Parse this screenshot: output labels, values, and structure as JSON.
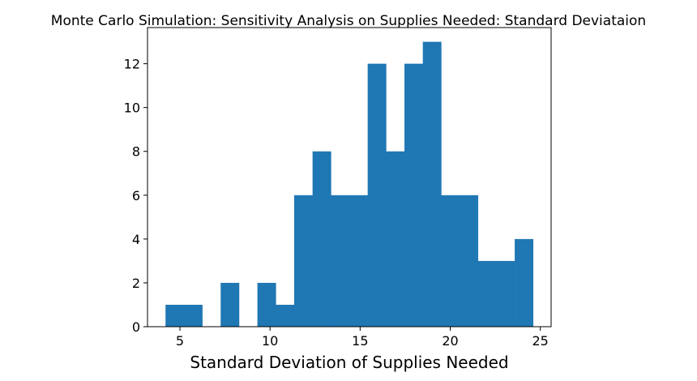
{
  "chart_data": {
    "type": "bar",
    "title": "Monte Carlo Simulation: Sensitivity Analysis on Supplies Needed: Standard Deviataion",
    "xlabel": "Standard Deviation of Supplies Needed",
    "ylabel": "",
    "bar_color": "#1f77b4",
    "grid": false,
    "legend": "none",
    "xlim": [
      3.2,
      25.6
    ],
    "ylim": [
      0,
      13.65
    ],
    "xticks": [
      5,
      10,
      15,
      20,
      25
    ],
    "yticks": [
      0,
      2,
      4,
      6,
      8,
      10,
      12
    ],
    "bin_edges": [
      4.2,
      5.22,
      6.24,
      7.26,
      8.28,
      9.3,
      10.32,
      11.34,
      12.36,
      13.38,
      14.4,
      15.42,
      16.44,
      17.46,
      18.48,
      19.5,
      20.52,
      21.54,
      22.56,
      23.58,
      24.6
    ],
    "values": [
      1,
      1,
      0,
      2,
      0,
      2,
      1,
      6,
      8,
      6,
      6,
      12,
      8,
      12,
      13,
      6,
      6,
      3,
      3,
      4
    ]
  }
}
